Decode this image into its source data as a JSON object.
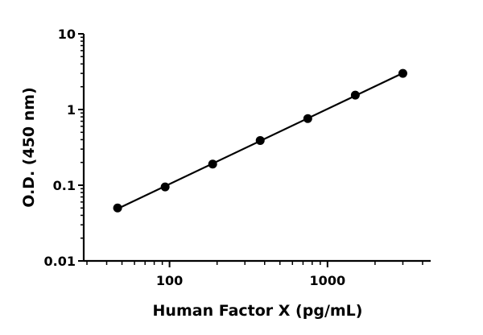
{
  "chart_data": {
    "type": "scatter",
    "xlabel": "Human Factor X (pg/mL)",
    "ylabel": "O.D. (450 nm)",
    "x_scale": "log",
    "y_scale": "log",
    "xlim": [
      30,
      4500
    ],
    "ylim": [
      0.01,
      10
    ],
    "x_ticks": [
      {
        "value": 100,
        "label": "100"
      },
      {
        "value": 1000,
        "label": "1000"
      }
    ],
    "y_ticks": [
      {
        "value": 10,
        "label": "10"
      },
      {
        "value": 1,
        "label": "1"
      },
      {
        "value": 0.1,
        "label": "0.1"
      },
      {
        "value": 0.01,
        "label": "0.01"
      }
    ],
    "grid": false,
    "legend": "none",
    "series": [
      {
        "points": [
          {
            "x": 46.9,
            "y": 0.05
          },
          {
            "x": 93.8,
            "y": 0.095
          },
          {
            "x": 187.5,
            "y": 0.19
          },
          {
            "x": 375,
            "y": 0.39
          },
          {
            "x": 750,
            "y": 0.76
          },
          {
            "x": 1500,
            "y": 1.55
          },
          {
            "x": 3000,
            "y": 3.0
          }
        ],
        "fit": "linear-log-log"
      }
    ]
  }
}
